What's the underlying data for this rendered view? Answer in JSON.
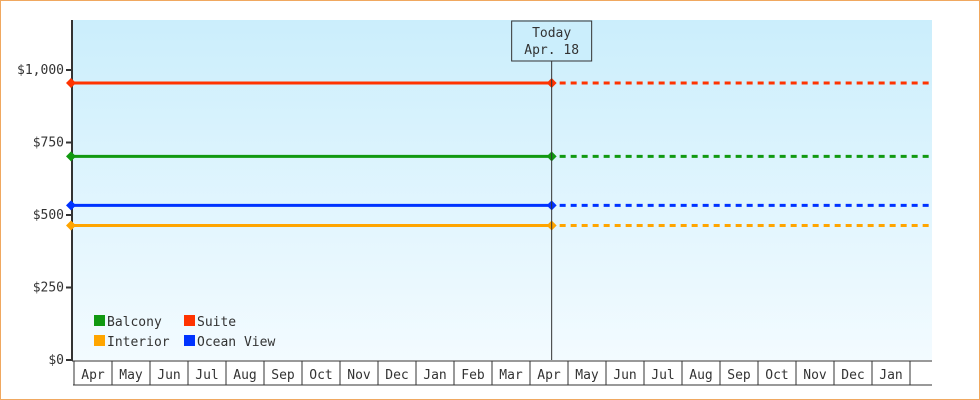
{
  "chart_data": {
    "type": "line",
    "x_categories": [
      "Apr",
      "May",
      "Jun",
      "Jul",
      "Aug",
      "Sep",
      "Oct",
      "Nov",
      "Dec",
      "Jan",
      "Feb",
      "Mar",
      "Apr",
      "May",
      "Jun",
      "Jul",
      "Aug",
      "Sep",
      "Oct",
      "Nov",
      "Dec",
      "Jan"
    ],
    "ylim": [
      0,
      1170
    ],
    "y_ticks": [
      0,
      250,
      500,
      750,
      1000
    ],
    "y_tick_labels": [
      "$0",
      "$250",
      "$500",
      "$750",
      "$1,000"
    ],
    "today_marker": {
      "title": "Today",
      "date": "Apr. 18",
      "position_months": 12.57
    },
    "legend_placement": "bottom-left",
    "series": [
      {
        "name": "Balcony",
        "color": "#119911",
        "value": 702
      },
      {
        "name": "Suite",
        "color": "#ff3300",
        "value": 955
      },
      {
        "name": "Interior",
        "color": "#ffa500",
        "value": 464
      },
      {
        "name": "Ocean View",
        "color": "#0033ff",
        "value": 533
      }
    ],
    "note_style": "solid lines up to today, dotted lines after"
  }
}
